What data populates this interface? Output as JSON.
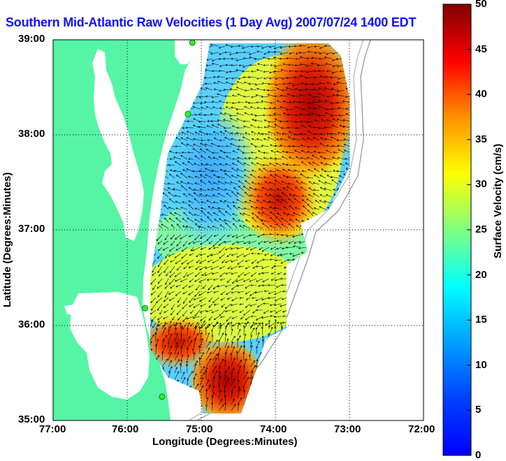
{
  "title": "Southern Mid-Atlantic Raw Velocities (1 Day Avg) 2007/07/24 1400 EDT",
  "chart_data": {
    "type": "heatmap",
    "title": "Southern Mid-Atlantic Raw Velocities (1 Day Avg) 2007/07/24 1400 EDT",
    "xlabel": "Longitude (Degrees:Minutes)",
    "ylabel": "Latitude (Degrees:Minutes)",
    "xlim": [
      -77,
      -72
    ],
    "ylim": [
      35,
      39
    ],
    "xticks": [
      {
        "value": -77,
        "label": "77:00"
      },
      {
        "value": -76,
        "label": "76:00"
      },
      {
        "value": -75,
        "label": "75:00"
      },
      {
        "value": -74,
        "label": "74:00"
      },
      {
        "value": -73,
        "label": "73:00"
      },
      {
        "value": -72,
        "label": "72:00"
      }
    ],
    "yticks": [
      {
        "value": 35,
        "label": "35:00"
      },
      {
        "value": 36,
        "label": "36:00"
      },
      {
        "value": 37,
        "label": "37:00"
      },
      {
        "value": 38,
        "label": "38:00"
      },
      {
        "value": 39,
        "label": "39:00"
      }
    ],
    "grid": true,
    "grid_style": "dotted",
    "colorbar": {
      "label": "Surface Velocity (cm/s)",
      "min": 0,
      "max": 50,
      "ticks": [
        0,
        5,
        10,
        15,
        20,
        25,
        30,
        35,
        40,
        45,
        50
      ],
      "colormap": "jet"
    },
    "land_color": "#55f5a5",
    "vector_color": "#000000",
    "stations": [
      {
        "lon": -75.12,
        "lat": 38.97
      },
      {
        "lon": -75.18,
        "lat": 38.22
      },
      {
        "lon": -75.76,
        "lat": 36.18
      },
      {
        "lon": -75.53,
        "lat": 35.25
      }
    ]
  }
}
